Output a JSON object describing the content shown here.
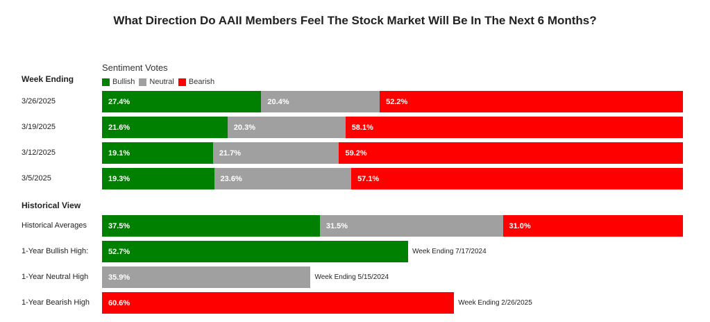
{
  "chart_data": {
    "type": "bar",
    "title": "What Direction Do AAII Members Feel The Stock Market Will Be In The Next 6 Months?",
    "legend_title": "Sentiment Votes",
    "legend": [
      {
        "name": "Bullish",
        "color": "#008000"
      },
      {
        "name": "Neutral",
        "color": "#a0a0a0"
      },
      {
        "name": "Bearish",
        "color": "#ff0000"
      }
    ],
    "weekly_header": "Week Ending",
    "weekly": [
      {
        "label": "3/26/2025",
        "bullish": 27.4,
        "neutral": 20.4,
        "bearish": 52.2
      },
      {
        "label": "3/19/2025",
        "bullish": 21.6,
        "neutral": 20.3,
        "bearish": 58.1
      },
      {
        "label": "3/12/2025",
        "bullish": 19.1,
        "neutral": 21.7,
        "bearish": 59.2
      },
      {
        "label": "3/5/2025",
        "bullish": 19.3,
        "neutral": 23.6,
        "bearish": 57.1
      }
    ],
    "historical_header": "Historical View",
    "historical_averages": {
      "label": "Historical Averages",
      "bullish": 37.5,
      "neutral": 31.5,
      "bearish": 31.0
    },
    "highs": [
      {
        "label": "1-Year Bullish High:",
        "series": "bullish",
        "value": 52.7,
        "note": "Week Ending 7/17/2024"
      },
      {
        "label": "1-Year Neutral High",
        "series": "neutral",
        "value": 35.9,
        "note": "Week Ending 5/15/2024"
      },
      {
        "label": "1-Year Bearish High",
        "series": "bearish",
        "value": 60.6,
        "note": "Week Ending 2/26/2025"
      }
    ]
  }
}
